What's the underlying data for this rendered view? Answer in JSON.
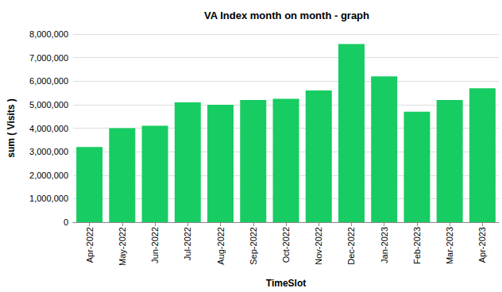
{
  "chart_data": {
    "type": "bar",
    "title": "VA Index month on month - graph",
    "x_label": "TimeSlot",
    "y_label": "sum ( Visits )",
    "categories": [
      "Apr-2022",
      "May-2022",
      "Jun-2022",
      "Jul-2022",
      "Aug-2022",
      "Sep-2022",
      "Oct-2022",
      "Nov-2022",
      "Dec-2022",
      "Jan-2023",
      "Feb-2023",
      "Mar-2023",
      "Apr-2023"
    ],
    "values": [
      3200000,
      4000000,
      4100000,
      5100000,
      5000000,
      5200000,
      5250000,
      5600000,
      7580000,
      6200000,
      4700000,
      5200000,
      5700000
    ],
    "color": "#17cc62",
    "ylim": [
      0,
      8000000
    ],
    "yticks": [
      0,
      {
        "value": 1000000,
        "label": "1,000,000"
      },
      {
        "value": 2000000,
        "label": "2,000,000"
      },
      {
        "value": 3000000,
        "label": "3,000,000"
      },
      {
        "value": 4000000,
        "label": "4,000,000"
      },
      {
        "value": 5000000,
        "label": "5,000,000"
      },
      {
        "value": 6000000,
        "label": "6,000,000"
      },
      {
        "value": 7000000,
        "label": "7,000,000"
      },
      {
        "value": 8000000,
        "label": "8,000,000"
      }
    ],
    "grid": true
  }
}
